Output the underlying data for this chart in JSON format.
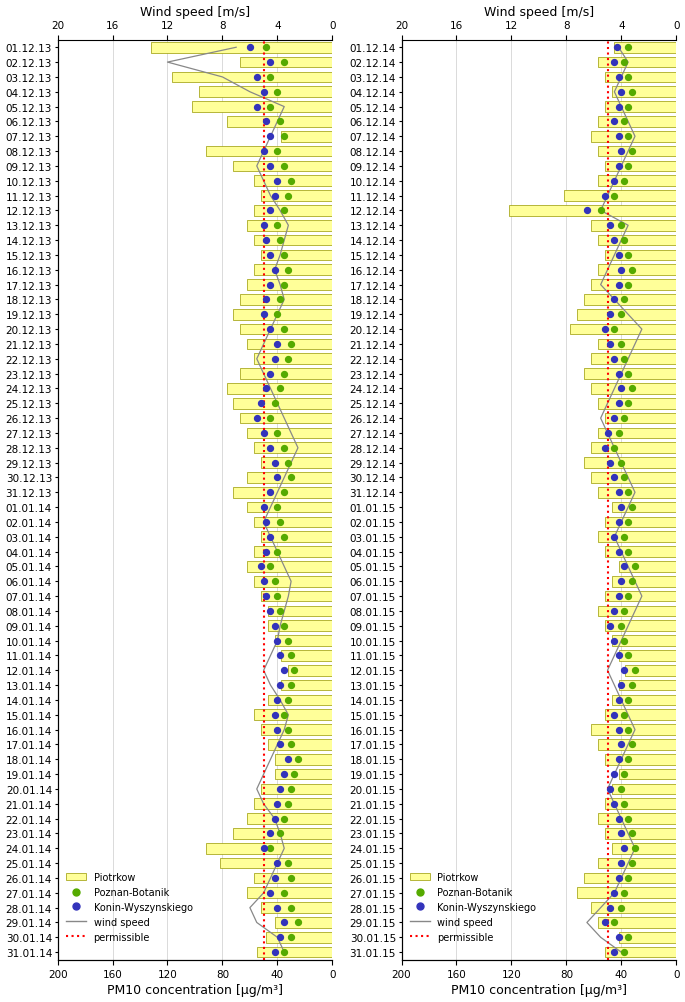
{
  "left_dates": [
    "31.01.14",
    "30.01.14",
    "29.01.14",
    "28.01.14",
    "27.01.14",
    "26.01.14",
    "25.01.14",
    "24.01.14",
    "23.01.14",
    "22.01.14",
    "21.01.14",
    "20.01.14",
    "19.01.14",
    "18.01.14",
    "17.01.14",
    "16.01.14",
    "15.01.14",
    "14.01.14",
    "13.01.14",
    "12.01.14",
    "11.01.14",
    "10.01.14",
    "09.01.14",
    "08.01.14",
    "07.01.14",
    "06.01.14",
    "05.01.14",
    "04.01.14",
    "03.01.14",
    "02.01.14",
    "01.01.14",
    "31.12.13",
    "30.12.13",
    "29.12.13",
    "28.12.13",
    "27.12.13",
    "26.12.13",
    "25.12.13",
    "24.12.13",
    "23.12.13",
    "22.12.13",
    "21.12.13",
    "20.12.13",
    "19.12.13",
    "18.12.13",
    "17.12.13",
    "16.12.13",
    "15.12.13",
    "14.12.13",
    "13.12.13",
    "12.12.13",
    "11.12.13",
    "10.12.13",
    "09.12.13",
    "08.12.13",
    "07.12.13",
    "06.12.13",
    "05.12.13",
    "04.12.13",
    "03.12.13",
    "02.12.13",
    "01.12.13"
  ],
  "right_dates": [
    "31.01.15",
    "30.01.15",
    "29.01.15",
    "28.01.15",
    "27.01.15",
    "26.01.15",
    "25.01.15",
    "24.01.15",
    "23.01.15",
    "22.01.15",
    "21.01.15",
    "20.01.15",
    "19.01.15",
    "18.01.15",
    "17.01.15",
    "16.01.15",
    "15.01.15",
    "14.01.15",
    "13.01.15",
    "12.01.15",
    "11.01.15",
    "10.01.15",
    "09.01.15",
    "08.01.15",
    "07.01.15",
    "06.01.15",
    "05.01.15",
    "04.01.15",
    "03.01.15",
    "02.01.15",
    "01.01.15",
    "31.12.14",
    "30.12.14",
    "29.12.14",
    "28.12.14",
    "27.12.14",
    "26.12.14",
    "25.12.14",
    "24.12.14",
    "23.12.14",
    "22.12.14",
    "21.12.14",
    "20.12.14",
    "19.12.14",
    "18.12.14",
    "17.12.14",
    "16.12.14",
    "15.12.14",
    "14.12.14",
    "13.12.14",
    "12.12.14",
    "11.12.14",
    "10.12.14",
    "09.12.14",
    "08.12.14",
    "07.12.14",
    "06.12.14",
    "05.12.14",
    "04.12.14",
    "03.12.14",
    "02.12.14",
    "01.12.14"
  ],
  "left_piotrkow": [
    55,
    48,
    42,
    52,
    62,
    57,
    82,
    92,
    72,
    62,
    57,
    52,
    42,
    42,
    47,
    52,
    57,
    47,
    37,
    32,
    37,
    42,
    47,
    47,
    52,
    57,
    62,
    57,
    52,
    57,
    62,
    72,
    62,
    52,
    57,
    62,
    67,
    72,
    77,
    67,
    57,
    62,
    67,
    72,
    67,
    62,
    57,
    52,
    57,
    62,
    57,
    52,
    57,
    72,
    92,
    37,
    77,
    102,
    97,
    117,
    67,
    132
  ],
  "left_wind": [
    3.5,
    4.0,
    5.5,
    6.0,
    5.0,
    4.5,
    4.0,
    3.5,
    3.8,
    4.2,
    5.0,
    5.5,
    5.0,
    4.5,
    4.0,
    3.5,
    3.2,
    3.8,
    4.5,
    5.0,
    4.5,
    4.0,
    3.8,
    3.5,
    3.2,
    3.0,
    3.5,
    4.0,
    4.5,
    5.0,
    4.5,
    4.0,
    3.5,
    3.0,
    2.5,
    3.0,
    3.5,
    4.0,
    4.5,
    5.0,
    5.5,
    5.0,
    4.5,
    4.0,
    3.5,
    3.8,
    4.2,
    3.8,
    3.5,
    3.2,
    3.8,
    4.5,
    5.0,
    5.5,
    5.0,
    4.5,
    4.0,
    3.5,
    6.0,
    8.0,
    12.0,
    7.0
  ],
  "left_pb": [
    3.5,
    3.0,
    2.5,
    3.0,
    3.5,
    3.0,
    3.2,
    4.5,
    3.8,
    3.5,
    3.2,
    3.0,
    2.8,
    2.5,
    3.0,
    3.2,
    3.5,
    3.2,
    3.0,
    2.8,
    3.0,
    3.2,
    3.5,
    3.8,
    4.0,
    4.2,
    4.5,
    4.0,
    3.5,
    3.8,
    4.0,
    3.5,
    3.0,
    3.2,
    3.5,
    4.0,
    4.5,
    4.2,
    3.8,
    3.5,
    3.2,
    3.0,
    3.5,
    4.0,
    3.8,
    3.5,
    3.2,
    3.5,
    3.8,
    4.0,
    3.5,
    3.2,
    3.0,
    3.5,
    4.0,
    3.5,
    3.8,
    4.5,
    4.0,
    4.5,
    3.5,
    4.8
  ],
  "left_konin": [
    4.2,
    3.8,
    3.5,
    4.0,
    4.5,
    4.2,
    4.0,
    5.0,
    4.5,
    4.2,
    4.0,
    3.8,
    3.5,
    3.2,
    3.8,
    4.0,
    4.2,
    4.0,
    3.8,
    3.5,
    3.8,
    4.0,
    4.2,
    4.5,
    4.8,
    5.0,
    5.2,
    4.8,
    4.5,
    4.8,
    5.0,
    4.5,
    4.0,
    4.2,
    4.5,
    5.0,
    5.5,
    5.2,
    4.8,
    4.5,
    4.2,
    4.0,
    4.5,
    5.0,
    4.8,
    4.5,
    4.2,
    4.5,
    4.8,
    5.0,
    4.5,
    4.2,
    4.0,
    4.5,
    5.0,
    4.5,
    4.8,
    5.5,
    5.0,
    5.5,
    4.5,
    6.0
  ],
  "right_piotrkow": [
    52,
    42,
    57,
    62,
    72,
    67,
    57,
    47,
    52,
    57,
    52,
    47,
    42,
    52,
    57,
    62,
    52,
    47,
    42,
    37,
    42,
    47,
    52,
    57,
    52,
    47,
    42,
    52,
    57,
    52,
    47,
    57,
    62,
    67,
    62,
    57,
    52,
    57,
    62,
    67,
    62,
    57,
    77,
    72,
    67,
    62,
    57,
    52,
    57,
    62,
    122,
    82,
    57,
    52,
    57,
    62,
    57,
    52,
    47,
    52,
    57,
    45
  ],
  "right_wind": [
    4.0,
    5.5,
    6.5,
    5.5,
    4.5,
    4.0,
    3.5,
    3.0,
    3.5,
    4.0,
    4.5,
    5.0,
    4.5,
    4.0,
    3.5,
    3.0,
    3.5,
    4.0,
    4.5,
    5.0,
    4.5,
    4.0,
    3.5,
    3.0,
    2.5,
    3.0,
    3.5,
    4.0,
    4.5,
    4.0,
    3.5,
    3.0,
    3.5,
    4.0,
    4.5,
    5.0,
    5.5,
    5.0,
    4.5,
    4.0,
    3.5,
    3.0,
    2.5,
    3.5,
    4.5,
    5.5,
    5.0,
    4.5,
    4.0,
    3.5,
    5.5,
    5.0,
    4.5,
    4.0,
    3.5,
    3.0,
    3.5,
    4.0,
    4.5,
    4.0,
    3.5,
    4.2
  ],
  "right_pb": [
    3.8,
    3.5,
    4.5,
    4.0,
    3.8,
    3.5,
    3.2,
    3.0,
    3.2,
    3.5,
    3.8,
    4.0,
    3.8,
    3.5,
    3.2,
    3.5,
    3.8,
    3.5,
    3.2,
    3.0,
    3.5,
    3.8,
    4.0,
    3.8,
    3.5,
    3.2,
    3.0,
    3.5,
    3.8,
    3.5,
    3.2,
    3.5,
    3.8,
    4.0,
    4.5,
    4.2,
    3.8,
    3.5,
    3.2,
    3.5,
    3.8,
    4.0,
    4.5,
    4.0,
    3.8,
    3.5,
    3.2,
    3.5,
    3.8,
    4.0,
    5.5,
    4.5,
    3.8,
    3.5,
    3.2,
    3.5,
    3.8,
    3.5,
    3.2,
    3.5,
    3.8,
    3.5
  ],
  "right_konin": [
    4.5,
    4.2,
    5.2,
    4.8,
    4.5,
    4.2,
    4.0,
    3.8,
    4.0,
    4.2,
    4.5,
    4.8,
    4.5,
    4.2,
    4.0,
    4.2,
    4.5,
    4.2,
    4.0,
    3.8,
    4.2,
    4.5,
    4.8,
    4.5,
    4.2,
    4.0,
    3.8,
    4.2,
    4.5,
    4.2,
    4.0,
    4.2,
    4.5,
    4.8,
    5.2,
    5.0,
    4.5,
    4.2,
    4.0,
    4.2,
    4.5,
    4.8,
    5.2,
    4.8,
    4.5,
    4.2,
    4.0,
    4.2,
    4.5,
    4.8,
    6.5,
    5.2,
    4.5,
    4.2,
    4.0,
    4.2,
    4.5,
    4.2,
    4.0,
    4.2,
    4.5,
    4.3
  ],
  "permissible_pm10": 50,
  "bar_color": "#ffff99",
  "bar_edgecolor": "#999900",
  "wind_color": "#888888",
  "pb_color": "#55aa00",
  "konin_color": "#3333bb",
  "permissible_color": "#ff0000",
  "tick_fontsize": 7.5,
  "label_fontsize": 9,
  "legend_fontsize": 7
}
